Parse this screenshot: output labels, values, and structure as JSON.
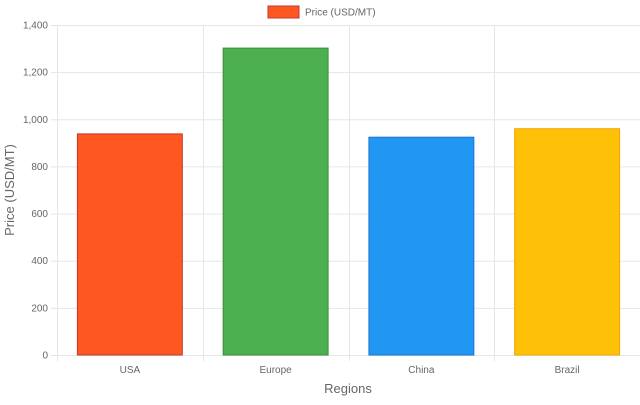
{
  "chart_data": {
    "type": "bar",
    "categories": [
      "USA",
      "Europe",
      "China",
      "Brazil"
    ],
    "series": [
      {
        "name": "Price (USD/MT)",
        "values": [
          938,
          1302,
          924,
          960
        ]
      }
    ],
    "bar_colors": [
      "#FF5722",
      "#4CAF50",
      "#2196F3",
      "#FFC107"
    ],
    "bar_border_colors": [
      "#C0392B",
      "#388E3C",
      "#1976D2",
      "#F0A500"
    ],
    "legend_swatch_color": "#FF5722",
    "legend_swatch_border": "#C0392B",
    "legend_position": "top-center",
    "xlabel": "Regions",
    "ylabel": "Price (USD/MT)",
    "ylim": [
      0,
      1400
    ],
    "yticks": [
      "0",
      "200",
      "400",
      "600",
      "800",
      "1,000",
      "1,200",
      "1,400"
    ],
    "ytick_values": [
      0,
      200,
      400,
      600,
      800,
      1000,
      1200,
      1400
    ],
    "grid": true,
    "grid_color": "#e6e6e6",
    "text_color": "#666666"
  }
}
